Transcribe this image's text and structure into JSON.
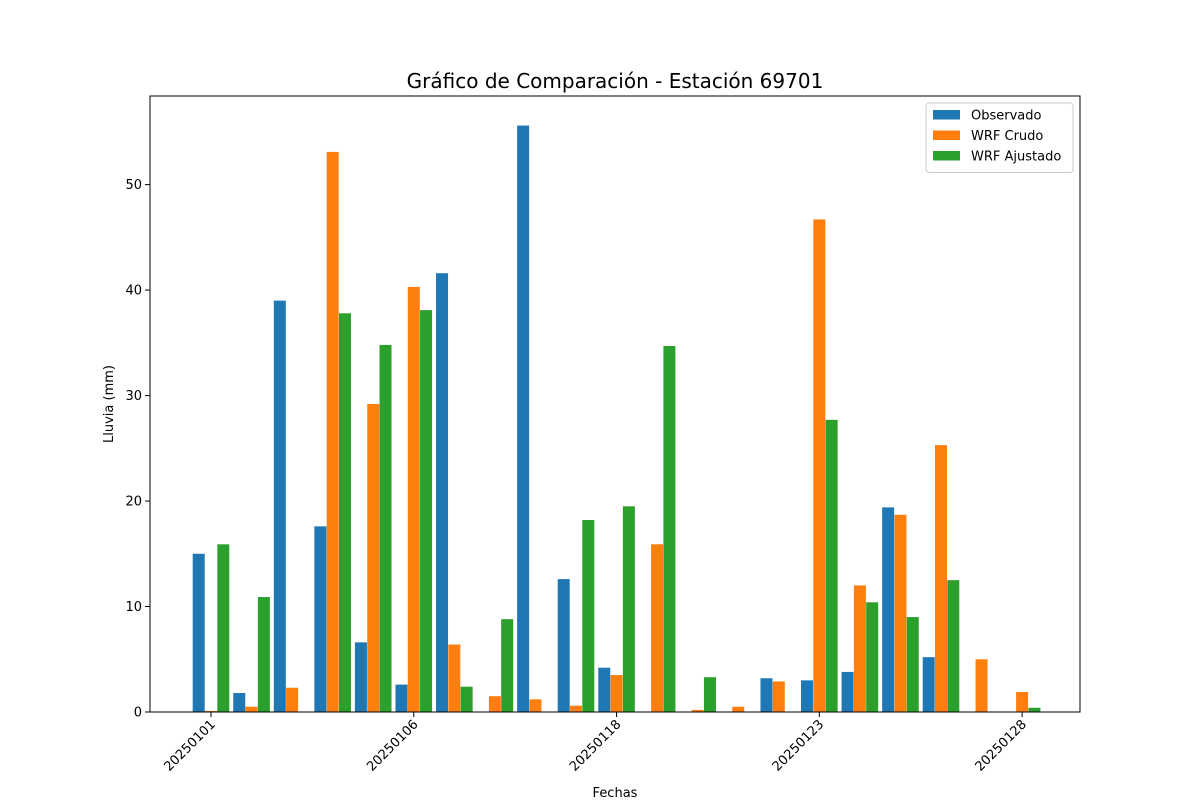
{
  "chart_data": {
    "type": "bar",
    "title": "Gráfico de Comparación - Estación 69701",
    "xlabel": "Fechas",
    "ylabel": "Lluvia (mm)",
    "ylim": [
      0,
      58.4
    ],
    "yticks": [
      0,
      10,
      20,
      30,
      40,
      50
    ],
    "xticks": [
      {
        "index": 0,
        "label": "20250101"
      },
      {
        "index": 5,
        "label": "20250106"
      },
      {
        "index": 10,
        "label": "20250118"
      },
      {
        "index": 15,
        "label": "20250123"
      },
      {
        "index": 20,
        "label": "20250128"
      }
    ],
    "legend_position": "top-right",
    "grid": false,
    "series": [
      {
        "name": "Observado",
        "color": "#1f77b4",
        "values": [
          15.0,
          1.8,
          39.0,
          17.6,
          6.6,
          2.6,
          41.6,
          0.0,
          55.6,
          12.6,
          4.2,
          0.0,
          0.0,
          0.0,
          3.2,
          3.0,
          3.8,
          19.4,
          5.2,
          0.0,
          0.0
        ]
      },
      {
        "name": "WRF Crudo",
        "color": "#ff7f0e",
        "values": [
          0.1,
          0.5,
          2.3,
          53.1,
          29.2,
          40.3,
          6.4,
          1.5,
          1.2,
          0.6,
          3.5,
          15.9,
          0.2,
          0.5,
          2.9,
          46.7,
          12.0,
          18.7,
          25.3,
          5.0,
          1.9
        ]
      },
      {
        "name": "WRF Ajustado",
        "color": "#2ca02c",
        "values": [
          15.9,
          10.9,
          0.0,
          37.8,
          34.8,
          38.1,
          2.4,
          8.8,
          0.0,
          18.2,
          19.5,
          34.7,
          3.3,
          0.0,
          0.0,
          27.7,
          10.4,
          9.0,
          12.5,
          0.0,
          0.4
        ]
      }
    ]
  }
}
